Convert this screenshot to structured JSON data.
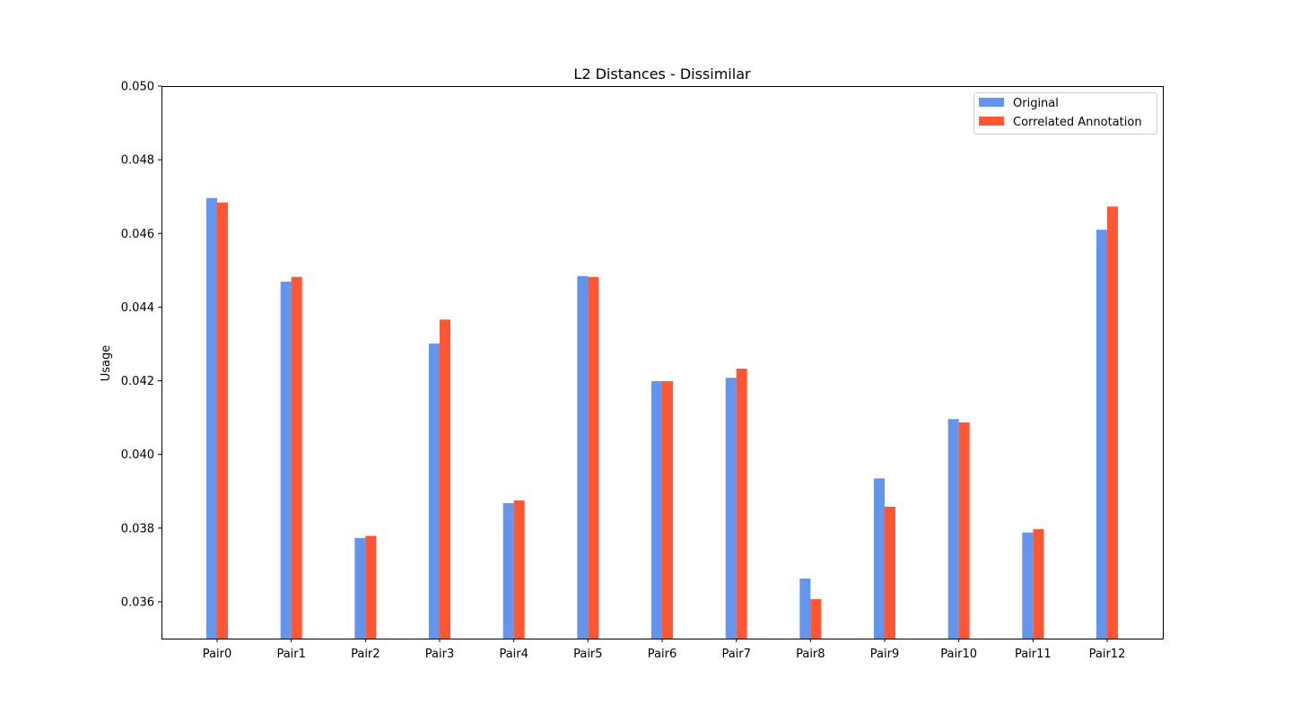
{
  "chart_data": {
    "type": "bar",
    "title": "L2 Distances - Dissimilar",
    "xlabel": "",
    "ylabel": "Usage",
    "categories": [
      "Pair0",
      "Pair1",
      "Pair2",
      "Pair3",
      "Pair4",
      "Pair5",
      "Pair6",
      "Pair7",
      "Pair8",
      "Pair9",
      "Pair10",
      "Pair11",
      "Pair12"
    ],
    "series": [
      {
        "name": "Original",
        "color": "#6495ED",
        "values": [
          0.04696,
          0.04469,
          0.03773,
          0.04301,
          0.03868,
          0.04484,
          0.04199,
          0.04208,
          0.03663,
          0.03935,
          0.04096,
          0.03788,
          0.0461
        ]
      },
      {
        "name": "Correlated Annotation",
        "color": "#FF5733",
        "values": [
          0.04684,
          0.04482,
          0.03779,
          0.04366,
          0.03875,
          0.04482,
          0.04199,
          0.04233,
          0.03607,
          0.03858,
          0.04087,
          0.03797,
          0.04673
        ]
      }
    ],
    "ylim": [
      0.035,
      0.05
    ],
    "yticks": [
      "0.036",
      "0.038",
      "0.040",
      "0.042",
      "0.044",
      "0.046",
      "0.048",
      "0.050"
    ],
    "grid": false,
    "legend_position": "top-right"
  }
}
